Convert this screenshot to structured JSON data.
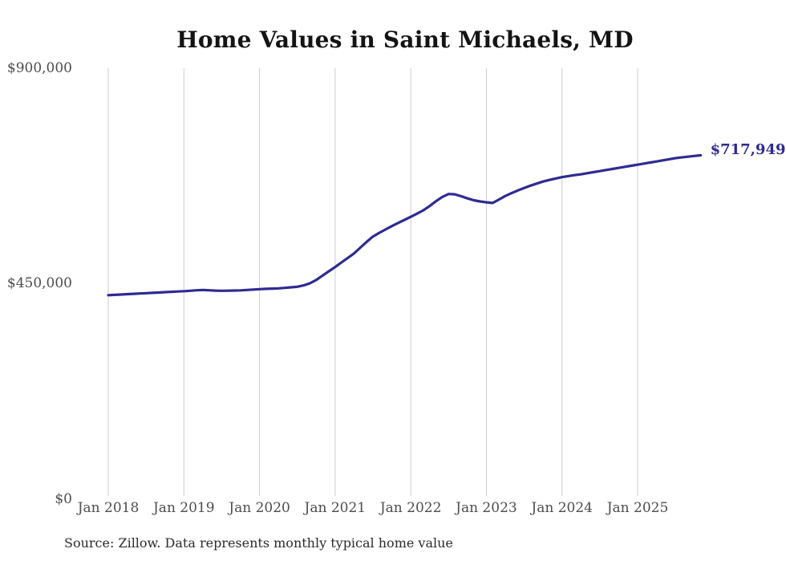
{
  "title": "Home Values in Saint Michaels, MD",
  "source_note": "Source: Zillow. Data represents monthly typical home value",
  "end_label": "$717,949",
  "colors": {
    "line": "#2e2b92",
    "end_label": "#2e2b92",
    "gridline": "#cccccc",
    "title": "#141414",
    "tick_label": "#4d4d4d",
    "source_text": "#2b2b2b",
    "background": "#ffffff"
  },
  "chart_data": {
    "type": "line",
    "title": "Home Values in Saint Michaels, MD",
    "xlabel": "",
    "ylabel": "",
    "ylim": [
      0,
      900000
    ],
    "grid": "vertical-only",
    "legend": "none",
    "x_tick_labels": [
      "Jan 2018",
      "Jan 2019",
      "Jan 2020",
      "Jan 2021",
      "Jan 2022",
      "Jan 2023",
      "Jan 2024",
      "Jan 2025"
    ],
    "y_ticks": [
      {
        "label": "$900,000",
        "value": 900000
      },
      {
        "label": "$450,000",
        "value": 450000
      },
      {
        "label": "$0",
        "value": 0
      }
    ],
    "series": [
      {
        "name": "Monthly typical home value",
        "start_month": "2018-01",
        "end_month": "2025-11",
        "frequency": "monthly",
        "final_value": 717949,
        "final_value_label": "$717,949",
        "values": [
          425600,
          426300,
          427000,
          427700,
          428400,
          429100,
          429800,
          430500,
          431200,
          431900,
          432600,
          433300,
          434000,
          434800,
          435800,
          436500,
          435900,
          435200,
          434800,
          435000,
          435400,
          435700,
          436500,
          437400,
          438200,
          438800,
          439400,
          439900,
          440800,
          442000,
          443200,
          446000,
          450500,
          457500,
          466500,
          475500,
          484400,
          494000,
          503500,
          512900,
          525000,
          537000,
          548200,
          556000,
          563000,
          570000,
          576500,
          583000,
          589300,
          596000,
          603000,
          612000,
          622000,
          631000,
          637200,
          636500,
          632500,
          627900,
          624000,
          621500,
          619600,
          618300,
          625500,
          633000,
          639000,
          644500,
          649700,
          654500,
          659000,
          663200,
          666500,
          669500,
          672400,
          674500,
          676500,
          678300,
          680500,
          682800,
          685000,
          687300,
          689500,
          691700,
          694000,
          696200,
          698400,
          700700,
          702900,
          705100,
          707400,
          709700,
          711900,
          713600,
          715200,
          716600,
          717949
        ]
      }
    ]
  }
}
